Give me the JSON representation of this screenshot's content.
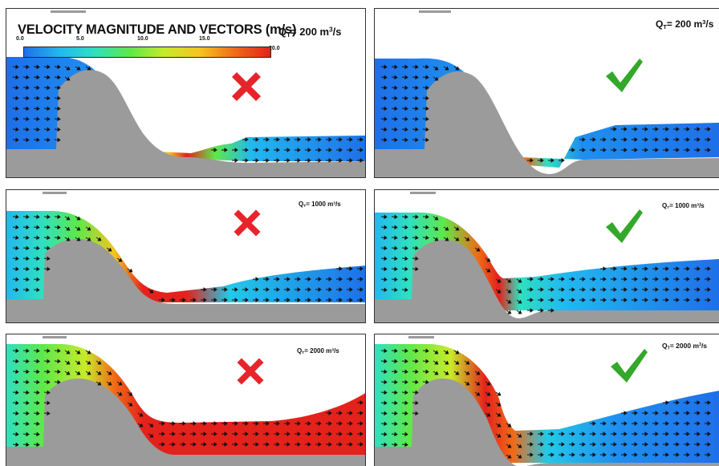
{
  "legend": {
    "title": "VELOCITY MAGNITUDE AND VECTORS (m/s)",
    "ticks": [
      "0.0",
      "5.0",
      "10.0",
      "15.0",
      "20.0"
    ],
    "range": [
      0,
      20
    ],
    "colormap": [
      "#1f6fe8",
      "#22b8f0",
      "#2fe0c0",
      "#5ee84a",
      "#c8ea2a",
      "#f5c421",
      "#f06a18",
      "#e3221c"
    ]
  },
  "panels": [
    {
      "id": "p1",
      "q_prefix": "Q",
      "q_sub": "T",
      "q_text": "= 200  m",
      "q_sup": "3",
      "q_suffix": "/s",
      "verdict": "bad",
      "mark_icon": "x-mark-icon"
    },
    {
      "id": "p2",
      "q_prefix": "Q",
      "q_sub": "T",
      "q_text": "= 200 m",
      "q_sup": "3",
      "q_suffix": "/s",
      "verdict": "good",
      "mark_icon": "check-mark-icon"
    },
    {
      "id": "p3",
      "q_prefix": "Q",
      "q_sub": "T",
      "q_text": "= 1000 m",
      "q_sup": "3",
      "q_suffix": "/s",
      "verdict": "bad",
      "mark_icon": "x-mark-icon"
    },
    {
      "id": "p4",
      "q_prefix": "Q",
      "q_sub": "T",
      "q_text": "= 1000 m",
      "q_sup": "3",
      "q_suffix": "/s",
      "verdict": "good",
      "mark_icon": "check-mark-icon"
    },
    {
      "id": "p5",
      "q_prefix": "Q",
      "q_sub": "T",
      "q_text": "= 2000 m",
      "q_sup": "3",
      "q_suffix": "/s",
      "verdict": "bad",
      "mark_icon": "x-mark-icon"
    },
    {
      "id": "p6",
      "q_prefix": "Q",
      "q_sub": "T",
      "q_text": "= 2000 m",
      "q_sup": "3",
      "q_suffix": "/s",
      "verdict": "good",
      "mark_icon": "check-mark-icon"
    }
  ],
  "colors": {
    "ground": "#9b9b9b",
    "x_mark": "#e8242b",
    "check_mark": "#33a82a",
    "arrow": "#111111"
  }
}
